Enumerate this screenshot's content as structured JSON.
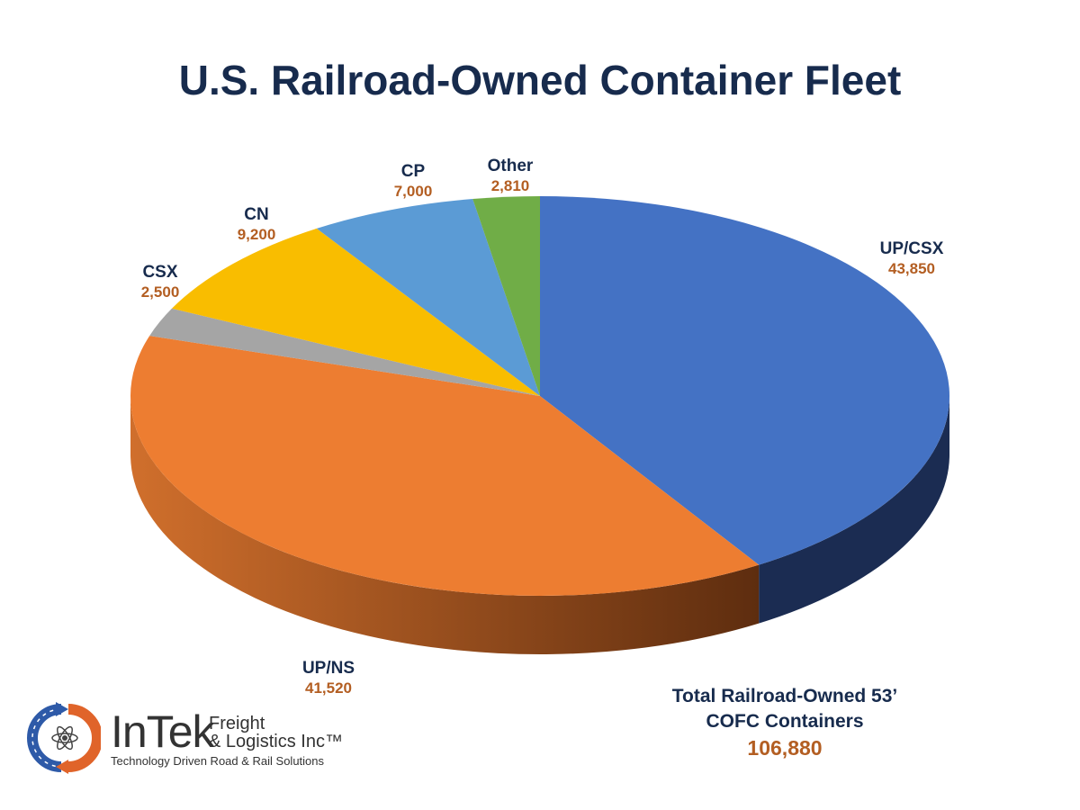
{
  "chart_data": {
    "type": "pie",
    "title": "U.S. Railroad-Owned Container Fleet",
    "slices": [
      {
        "label": "UP/CSX",
        "value": 43850,
        "value_label": "43,850",
        "color": "#4472c4",
        "side_color": "#1b2c52"
      },
      {
        "label": "UP/NS",
        "value": 41520,
        "value_label": "41,520",
        "color": "#ed7d31",
        "side_color": "#8a4418"
      },
      {
        "label": "CSX",
        "value": 2500,
        "value_label": "2,500",
        "color": "#a5a5a5",
        "side_color": "#666666"
      },
      {
        "label": "CN",
        "value": 9200,
        "value_label": "9,200",
        "color": "#f9bd00",
        "side_color": "#a07a00"
      },
      {
        "label": "CP",
        "value": 7000,
        "value_label": "7,000",
        "color": "#5b9bd5",
        "side_color": "#35608a"
      },
      {
        "label": "Other",
        "value": 2810,
        "value_label": "2,810",
        "color": "#70ad47",
        "side_color": "#436a2a"
      }
    ],
    "style": "3d-pie",
    "start": "12 o'clock, clockwise"
  },
  "total": {
    "label_line1": "Total Railroad-Owned 53’",
    "label_line2": "COFC Containers",
    "value": "106,880"
  },
  "logo": {
    "brand": "InTek",
    "line1": "Freight",
    "line2": "& Logistics Inc™",
    "tagline": "Technology Driven Road & Rail Solutions"
  }
}
